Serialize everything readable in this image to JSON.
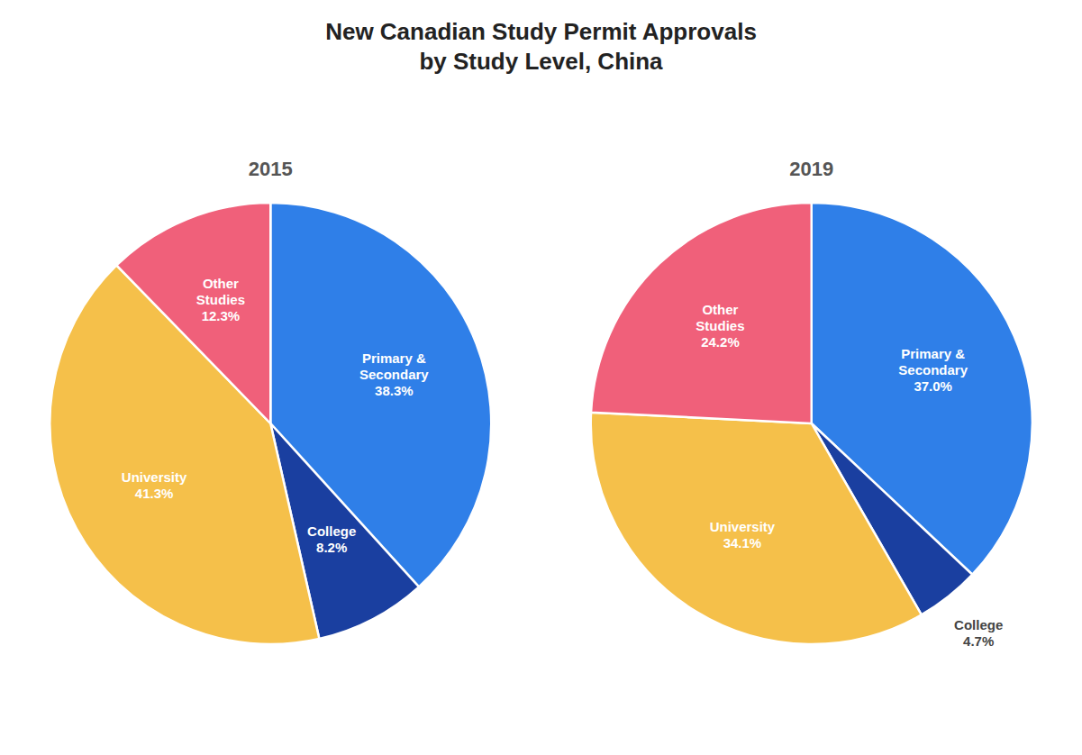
{
  "title": "New Canadian Study Permit Approvals\nby Study Level, China",
  "chart_data": [
    {
      "type": "pie",
      "title": "2015",
      "categories": [
        "Primary &\nSecondary",
        "College",
        "University",
        "Other\nStudies"
      ],
      "values": [
        38.3,
        8.2,
        41.3,
        12.3
      ],
      "value_labels": [
        "38.3%",
        "8.2%",
        "41.3%",
        "12.3%"
      ],
      "colors": [
        "#2f7fe8",
        "#1a3fa0",
        "#f5c04a",
        "#f0607a"
      ],
      "data_labels": true
    },
    {
      "type": "pie",
      "title": "2019",
      "categories": [
        "Primary &\nSecondary",
        "College",
        "University",
        "Other\nStudies"
      ],
      "values": [
        37.0,
        4.7,
        34.1,
        24.2
      ],
      "value_labels": [
        "37.0%",
        "4.7%",
        "34.1%",
        "24.2%"
      ],
      "colors": [
        "#2f7fe8",
        "#1a3fa0",
        "#f5c04a",
        "#f0607a"
      ],
      "data_labels": true
    }
  ]
}
